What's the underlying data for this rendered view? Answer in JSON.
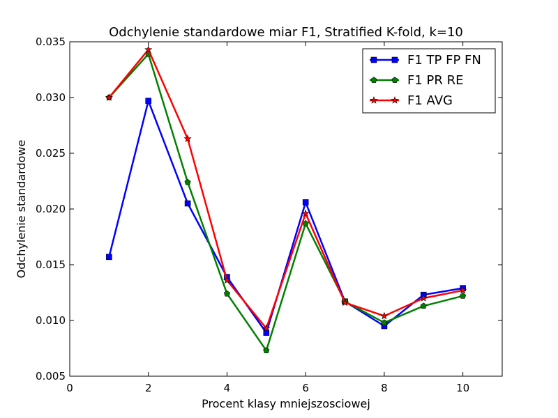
{
  "chart_data": {
    "type": "line",
    "title": "Odchylenie standardowe miar F1, Stratified K-fold, k=10",
    "xlabel": "Procent klasy mniejszosciowej",
    "ylabel": "Odchylenie standardowe",
    "xlim": [
      0,
      11
    ],
    "ylim": [
      0.005,
      0.035
    ],
    "xticks": [
      "0",
      "2",
      "4",
      "6",
      "8",
      "10"
    ],
    "yticks": [
      "0.005",
      "0.010",
      "0.015",
      "0.020",
      "0.025",
      "0.030",
      "0.035"
    ],
    "grid": false,
    "legend_position": "top-right",
    "x": [
      1,
      2,
      3,
      4,
      5,
      6,
      7,
      8,
      9,
      10
    ],
    "series": [
      {
        "name": "F1 TP FP FN",
        "color": "#0000ff",
        "marker": "square",
        "values": [
          0.0157,
          0.0297,
          0.0205,
          0.0139,
          0.0089,
          0.0206,
          0.0117,
          0.0095,
          0.0123,
          0.0129
        ]
      },
      {
        "name": "F1 PR RE",
        "color": "#008000",
        "marker": "pentagon",
        "values": [
          0.03,
          0.0339,
          0.0224,
          0.0124,
          0.0073,
          0.0187,
          0.0117,
          0.0098,
          0.0113,
          0.0122
        ]
      },
      {
        "name": "F1 AVG",
        "color": "#ff0000",
        "marker": "star",
        "values": [
          0.03,
          0.0343,
          0.0263,
          0.0136,
          0.0093,
          0.0196,
          0.0116,
          0.0104,
          0.012,
          0.0127
        ]
      }
    ]
  }
}
